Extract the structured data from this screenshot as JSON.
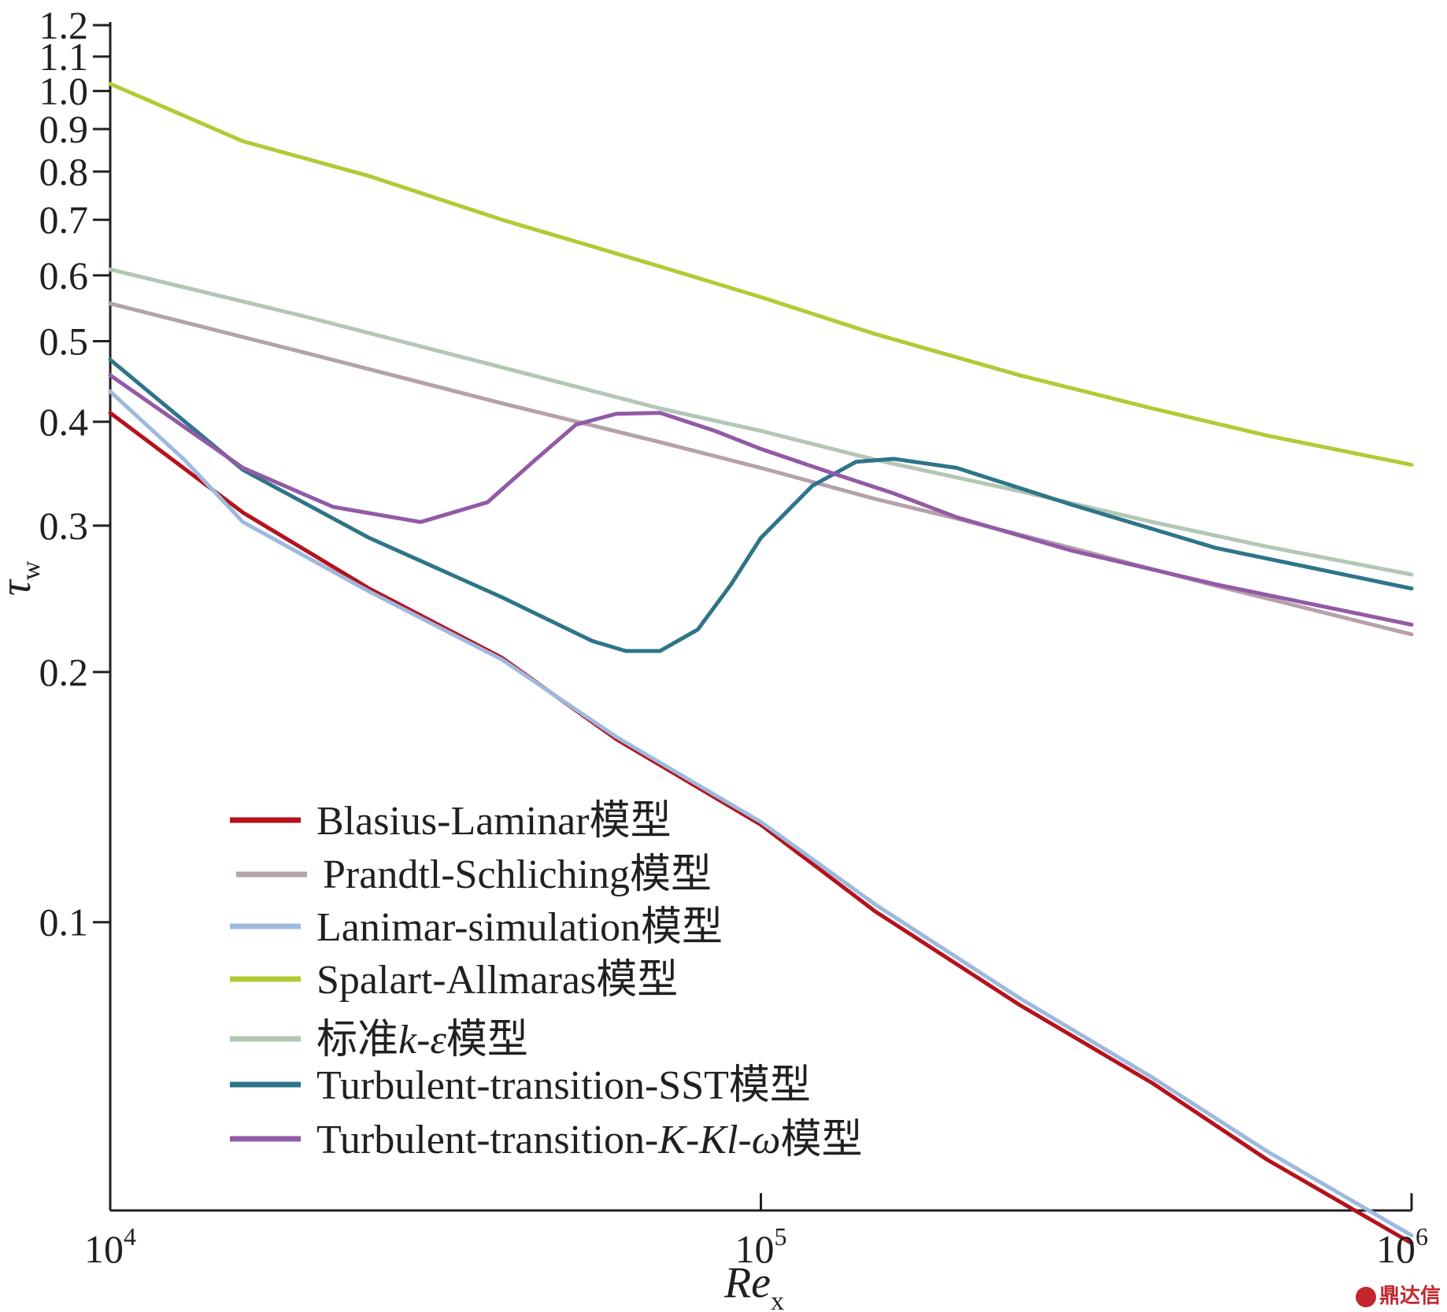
{
  "chart_data": {
    "type": "line",
    "xscale": "log",
    "yscale": "log",
    "xlim": [
      10000,
      1000000
    ],
    "ylim": [
      0.045,
      1.2
    ],
    "xlabel_main": "Re",
    "xlabel_sub": "x",
    "ylabel_main": "τ",
    "ylabel_sub": "w",
    "xticks": [
      {
        "value": 10000,
        "base": "10",
        "exp": "4"
      },
      {
        "value": 100000,
        "base": "10",
        "exp": "5"
      },
      {
        "value": 1000000,
        "base": "10",
        "exp": "6"
      }
    ],
    "yticks": [
      {
        "value": 0.1,
        "label": "0.1"
      },
      {
        "value": 0.2,
        "label": "0.2"
      },
      {
        "value": 0.3,
        "label": "0.3"
      },
      {
        "value": 0.4,
        "label": "0.4"
      },
      {
        "value": 0.5,
        "label": "0.5"
      },
      {
        "value": 0.6,
        "label": "0.6"
      },
      {
        "value": 0.7,
        "label": "0.7"
      },
      {
        "value": 0.8,
        "label": "0.8"
      },
      {
        "value": 0.9,
        "label": "0.9"
      },
      {
        "value": 1.0,
        "label": "1.0"
      },
      {
        "value": 1.1,
        "label": "1.1"
      },
      {
        "value": 1.2,
        "label": "1.2"
      }
    ],
    "legend_position": "lower-left",
    "series": [
      {
        "id": "blasius",
        "name": "Blasius-Laminar模型",
        "color": "#b5121b",
        "points": [
          [
            10000,
            0.41
          ],
          [
            16000,
            0.311
          ],
          [
            25000,
            0.252
          ],
          [
            40000,
            0.208
          ],
          [
            60000,
            0.166
          ],
          [
            100000,
            0.131
          ],
          [
            150000,
            0.103
          ],
          [
            250000,
            0.0795
          ],
          [
            400000,
            0.064
          ],
          [
            600000,
            0.0518
          ],
          [
            1000000,
            0.0411
          ]
        ]
      },
      {
        "id": "prandtl",
        "name": "Prandtl-Schliching模型",
        "color": "#b5a1ab",
        "points": [
          [
            10000,
            0.555
          ],
          [
            20000,
            0.484
          ],
          [
            40000,
            0.421
          ],
          [
            70000,
            0.378
          ],
          [
            100000,
            0.352
          ],
          [
            150000,
            0.323
          ],
          [
            200000,
            0.306
          ],
          [
            300000,
            0.282
          ],
          [
            500000,
            0.254
          ],
          [
            1000000,
            0.222
          ]
        ]
      },
      {
        "id": "lanimar",
        "name": "Lanimar-simulation模型",
        "color": "#9db9de",
        "points": [
          [
            10000,
            0.435
          ],
          [
            13000,
            0.36
          ],
          [
            16000,
            0.303
          ],
          [
            25000,
            0.25
          ],
          [
            40000,
            0.207
          ],
          [
            60000,
            0.167
          ],
          [
            100000,
            0.132
          ],
          [
            150000,
            0.105
          ],
          [
            250000,
            0.081
          ],
          [
            400000,
            0.065
          ],
          [
            600000,
            0.053
          ],
          [
            1000000,
            0.042
          ]
        ]
      },
      {
        "id": "spalart",
        "name": "Spalart-Allmaras模型",
        "color": "#b4c936",
        "points": [
          [
            10000,
            1.02
          ],
          [
            16000,
            0.87
          ],
          [
            25000,
            0.79
          ],
          [
            40000,
            0.7
          ],
          [
            70000,
            0.615
          ],
          [
            100000,
            0.565
          ],
          [
            150000,
            0.51
          ],
          [
            250000,
            0.455
          ],
          [
            400000,
            0.415
          ],
          [
            600000,
            0.385
          ],
          [
            1000000,
            0.355
          ]
        ]
      },
      {
        "id": "standard_ke",
        "name_prefix": "标准",
        "name_math": "k-ε",
        "name_suffix": "模型",
        "color": "#b3c7b4",
        "points": [
          [
            10000,
            0.61
          ],
          [
            20000,
            0.535
          ],
          [
            40000,
            0.465
          ],
          [
            70000,
            0.415
          ],
          [
            100000,
            0.39
          ],
          [
            150000,
            0.36
          ],
          [
            250000,
            0.33
          ],
          [
            400000,
            0.303
          ],
          [
            600000,
            0.283
          ],
          [
            1000000,
            0.262
          ]
        ]
      },
      {
        "id": "sst",
        "name": "Turbulent-transition-SST模型",
        "color": "#2e7589",
        "points": [
          [
            10000,
            0.475
          ],
          [
            16000,
            0.35
          ],
          [
            25000,
            0.29
          ],
          [
            40000,
            0.246
          ],
          [
            55000,
            0.218
          ],
          [
            62000,
            0.212
          ],
          [
            70000,
            0.212
          ],
          [
            80000,
            0.225
          ],
          [
            90000,
            0.255
          ],
          [
            100000,
            0.29
          ],
          [
            120000,
            0.335
          ],
          [
            140000,
            0.358
          ],
          [
            160000,
            0.361
          ],
          [
            200000,
            0.352
          ],
          [
            300000,
            0.318
          ],
          [
            500000,
            0.282
          ],
          [
            1000000,
            0.252
          ]
        ]
      },
      {
        "id": "kklw",
        "name_prefix": "Turbulent-transition-",
        "name_math": "K-Kl-ω",
        "name_suffix": "模型",
        "color": "#925aa6",
        "points": [
          [
            10000,
            0.455
          ],
          [
            16000,
            0.352
          ],
          [
            22000,
            0.316
          ],
          [
            30000,
            0.303
          ],
          [
            38000,
            0.32
          ],
          [
            45000,
            0.36
          ],
          [
            52000,
            0.397
          ],
          [
            60000,
            0.409
          ],
          [
            70000,
            0.41
          ],
          [
            85000,
            0.39
          ],
          [
            100000,
            0.371
          ],
          [
            130000,
            0.346
          ],
          [
            160000,
            0.328
          ],
          [
            200000,
            0.307
          ],
          [
            300000,
            0.28
          ],
          [
            500000,
            0.255
          ],
          [
            1000000,
            0.228
          ]
        ]
      }
    ]
  },
  "watermark": {
    "text": "鼎达信"
  }
}
